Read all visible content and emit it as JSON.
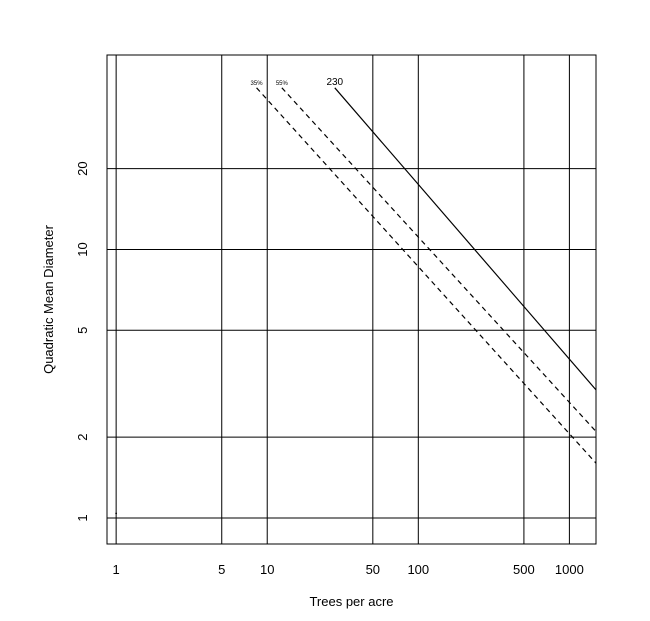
{
  "chart_data": {
    "type": "line",
    "title": "",
    "xlabel": "Trees per acre",
    "ylabel": "Quadratic Mean Diameter",
    "x_scale": "log",
    "y_scale": "log",
    "xlim": [
      0.87,
      1500
    ],
    "ylim": [
      0.8,
      53
    ],
    "x_ticks": [
      1,
      5,
      10,
      50,
      100,
      500,
      1000
    ],
    "x_tick_labels": [
      "1",
      "5",
      "10",
      "50",
      "100",
      "500",
      "1000"
    ],
    "y_ticks": [
      1,
      2,
      5,
      10,
      20
    ],
    "y_tick_labels": [
      "1",
      "2",
      "5",
      "10",
      "20"
    ],
    "grid": true,
    "series": [
      {
        "name": "230",
        "style": "solid",
        "x": [
          28,
          1500
        ],
        "y": [
          40,
          3.0
        ]
      },
      {
        "name": "55%",
        "style": "dashed",
        "x": [
          12.5,
          1500
        ],
        "y": [
          40,
          2.1
        ]
      },
      {
        "name": "35%",
        "style": "dashed",
        "x": [
          8.5,
          1500
        ],
        "y": [
          40,
          1.6
        ]
      }
    ],
    "points": [
      {
        "x": 1,
        "y": 1.04
      }
    ]
  }
}
